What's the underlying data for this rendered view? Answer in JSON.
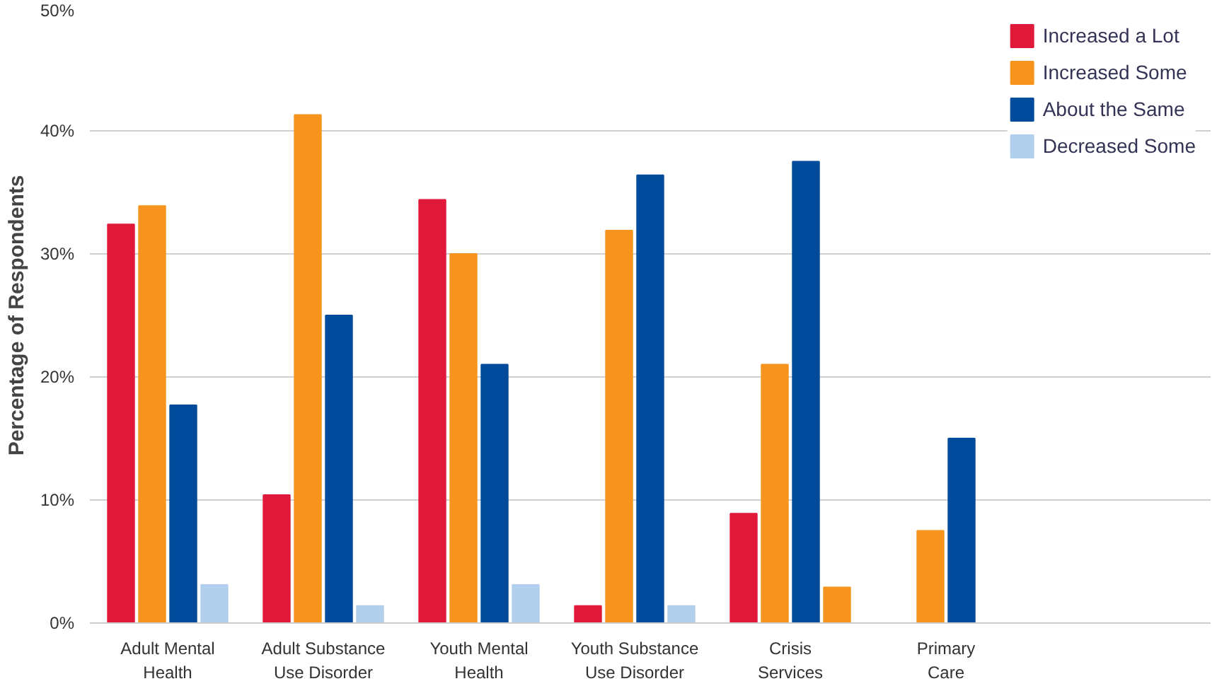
{
  "chart_data": {
    "type": "bar",
    "ylabel": "Percentage of Respondents",
    "categories": [
      "Adult Mental\nHealth",
      "Adult Substance\nUse Disorder",
      "Youth Mental\nHealth",
      "Youth Substance\nUse Disorder",
      "Crisis\nServices",
      "Primary\nCare"
    ],
    "series": [
      {
        "name": "Increased a Lot",
        "color": "#e0193a",
        "values": [
          32.4,
          10.4,
          34.4,
          1.4,
          8.9,
          null
        ]
      },
      {
        "name": "Increased Some",
        "color": "#f7941d",
        "values": [
          33.9,
          41.3,
          30.0,
          31.9,
          21.0,
          7.5
        ]
      },
      {
        "name": "About the Same",
        "color": "#004b9b",
        "values": [
          17.7,
          25.0,
          21.0,
          36.4,
          37.5,
          15.0
        ]
      },
      {
        "name": "Decreased Some",
        "color": "#b3cfee",
        "colors": [
          "#b3cfee",
          "#b3cfee",
          "#b3cfee",
          "#b3cfee",
          "#f7941d",
          "#b3cfee"
        ],
        "values": [
          3.1,
          1.4,
          3.1,
          1.4,
          2.9,
          null
        ]
      }
    ],
    "ylim": [
      0,
      50
    ],
    "yticks": [
      {
        "value": 0,
        "label": "0%"
      },
      {
        "value": 10,
        "label": "10%"
      },
      {
        "value": 20,
        "label": "20%"
      },
      {
        "value": 30,
        "label": "30%"
      },
      {
        "value": 40,
        "label": "40%"
      },
      {
        "value": 50,
        "label": "50%"
      }
    ],
    "grid": "y",
    "legend": "top right"
  }
}
